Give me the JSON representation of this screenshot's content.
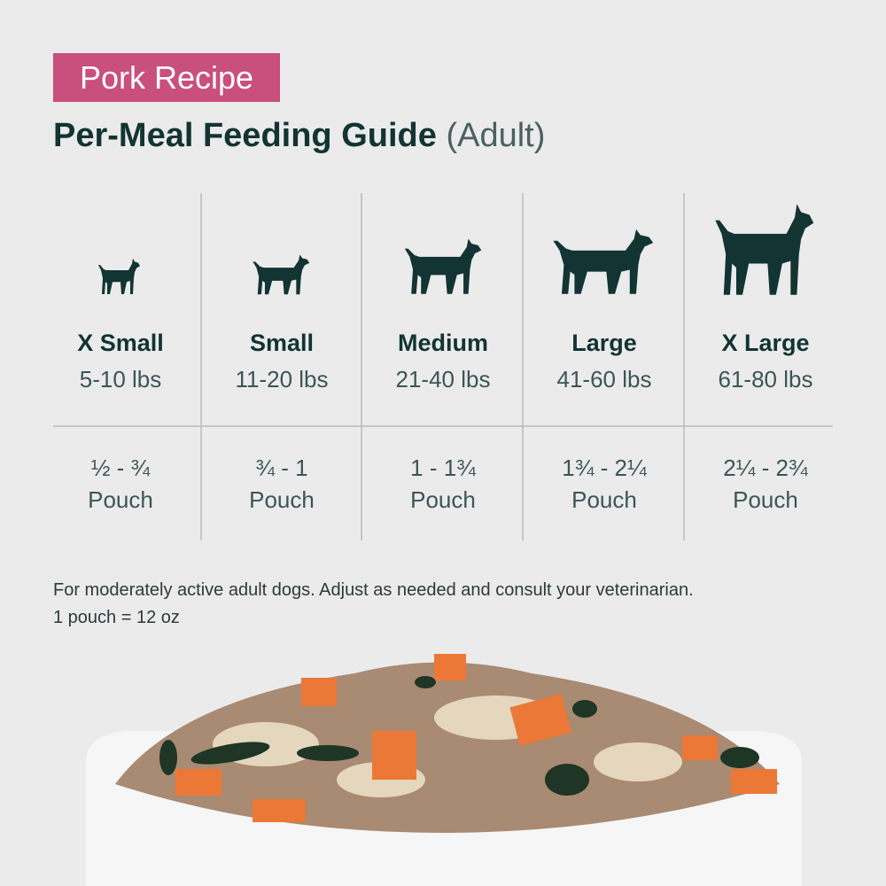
{
  "badge": "Pork Recipe",
  "title": "Per-Meal Feeding Guide",
  "title_suffix": "(Adult)",
  "columns": [
    {
      "size": "X Small",
      "weight": "5-10 lbs",
      "amount": "½ - ¾",
      "unit": "Pouch"
    },
    {
      "size": "Small",
      "weight": "11-20 lbs",
      "amount": "¾ - 1",
      "unit": "Pouch"
    },
    {
      "size": "Medium",
      "weight": "21-40 lbs",
      "amount": "1 - 1¾",
      "unit": "Pouch"
    },
    {
      "size": "Large",
      "weight": "41-60 lbs",
      "amount": "1¾ - 2¼",
      "unit": "Pouch"
    },
    {
      "size": "X Large",
      "weight": "61-80 lbs",
      "amount": "2¼ - 2¾",
      "unit": "Pouch"
    }
  ],
  "footnote": [
    "For moderately active adult dogs. Adjust as needed and consult your veterinarian.",
    "1 pouch = 12 oz"
  ]
}
